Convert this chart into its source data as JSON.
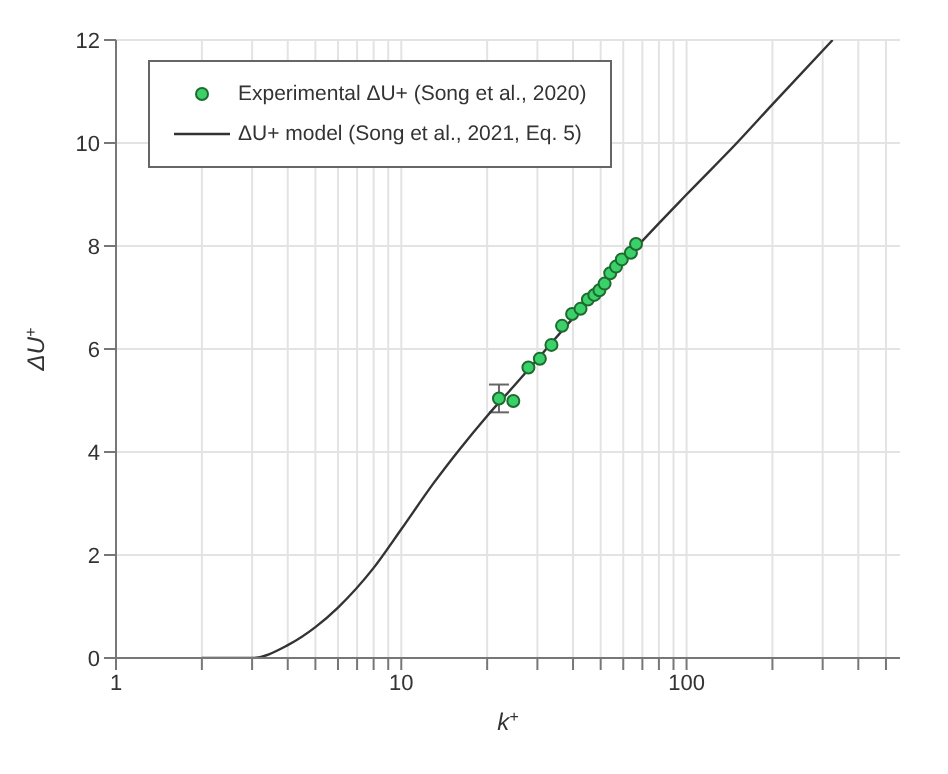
{
  "chart_data": {
    "type": "scatter",
    "xlabel": "k$^{+}$",
    "ylabel": "ΔU$^{+}$",
    "log": "x",
    "xlim": [
      1,
      560
    ],
    "xticks": [
      1,
      {
        "value": 2,
        "label": null
      },
      {
        "value": 3,
        "label": null
      },
      {
        "value": 4,
        "label": null
      },
      {
        "value": 5,
        "label": null
      },
      {
        "value": 6,
        "label": null
      },
      {
        "value": 7,
        "label": null
      },
      {
        "value": 8,
        "label": null
      },
      {
        "value": 9,
        "label": null
      },
      10,
      {
        "value": 20,
        "label": null
      },
      {
        "value": 30,
        "label": null
      },
      {
        "value": 40,
        "label": null
      },
      {
        "value": 50,
        "label": null
      },
      {
        "value": 60,
        "label": null
      },
      {
        "value": 70,
        "label": null
      },
      {
        "value": 80,
        "label": null
      },
      {
        "value": 90,
        "label": null
      },
      100,
      {
        "value": 200,
        "label": null
      },
      {
        "value": 300,
        "label": null
      },
      {
        "value": 400,
        "label": null
      },
      {
        "value": 500,
        "label": null
      }
    ],
    "ylim": [
      0,
      12
    ],
    "yticks": [
      0,
      2,
      4,
      6,
      8,
      10,
      12
    ],
    "grid": true,
    "legend": "top left",
    "series": [
      {
        "name": "Experimental ΔU+ (Song et al., 2020)",
        "marker": "circle",
        "color": "#3ad16a",
        "x": [
          22.0,
          24.7,
          27.9,
          30.6,
          33.6,
          36.6,
          39.7,
          42.5,
          45.1,
          47.5,
          49.5,
          51.6,
          54.0,
          56.6,
          59.3,
          62.2,
          63.8,
          66.5
        ],
        "values": [
          5.04,
          4.99,
          5.64,
          5.81,
          6.08,
          6.45,
          6.68,
          6.78,
          6.96,
          7.05,
          7.14,
          7.27,
          7.47,
          7.6,
          7.74,
          null,
          7.87,
          8.04
        ],
        "errors": [
          0.27,
          null,
          null,
          null,
          null,
          null,
          null,
          null,
          null,
          null,
          null,
          null,
          null,
          null,
          null,
          null,
          null,
          null
        ]
      },
      {
        "name": "ΔU+ model (Song et al., 2021, Eq. 5)",
        "type": "line",
        "marker": "none",
        "color": "#333333",
        "x": [
          2,
          3,
          4,
          5,
          6,
          8,
          10,
          13,
          16,
          20,
          25,
          30,
          40,
          50,
          70,
          100,
          150,
          200,
          325
        ],
        "values": [
          0,
          0,
          0.25,
          0.6,
          0.98,
          1.75,
          2.5,
          3.4,
          4.05,
          4.7,
          5.3,
          5.8,
          6.6,
          7.2,
          8.1,
          9.0,
          10.0,
          10.75,
          12
        ]
      }
    ]
  }
}
